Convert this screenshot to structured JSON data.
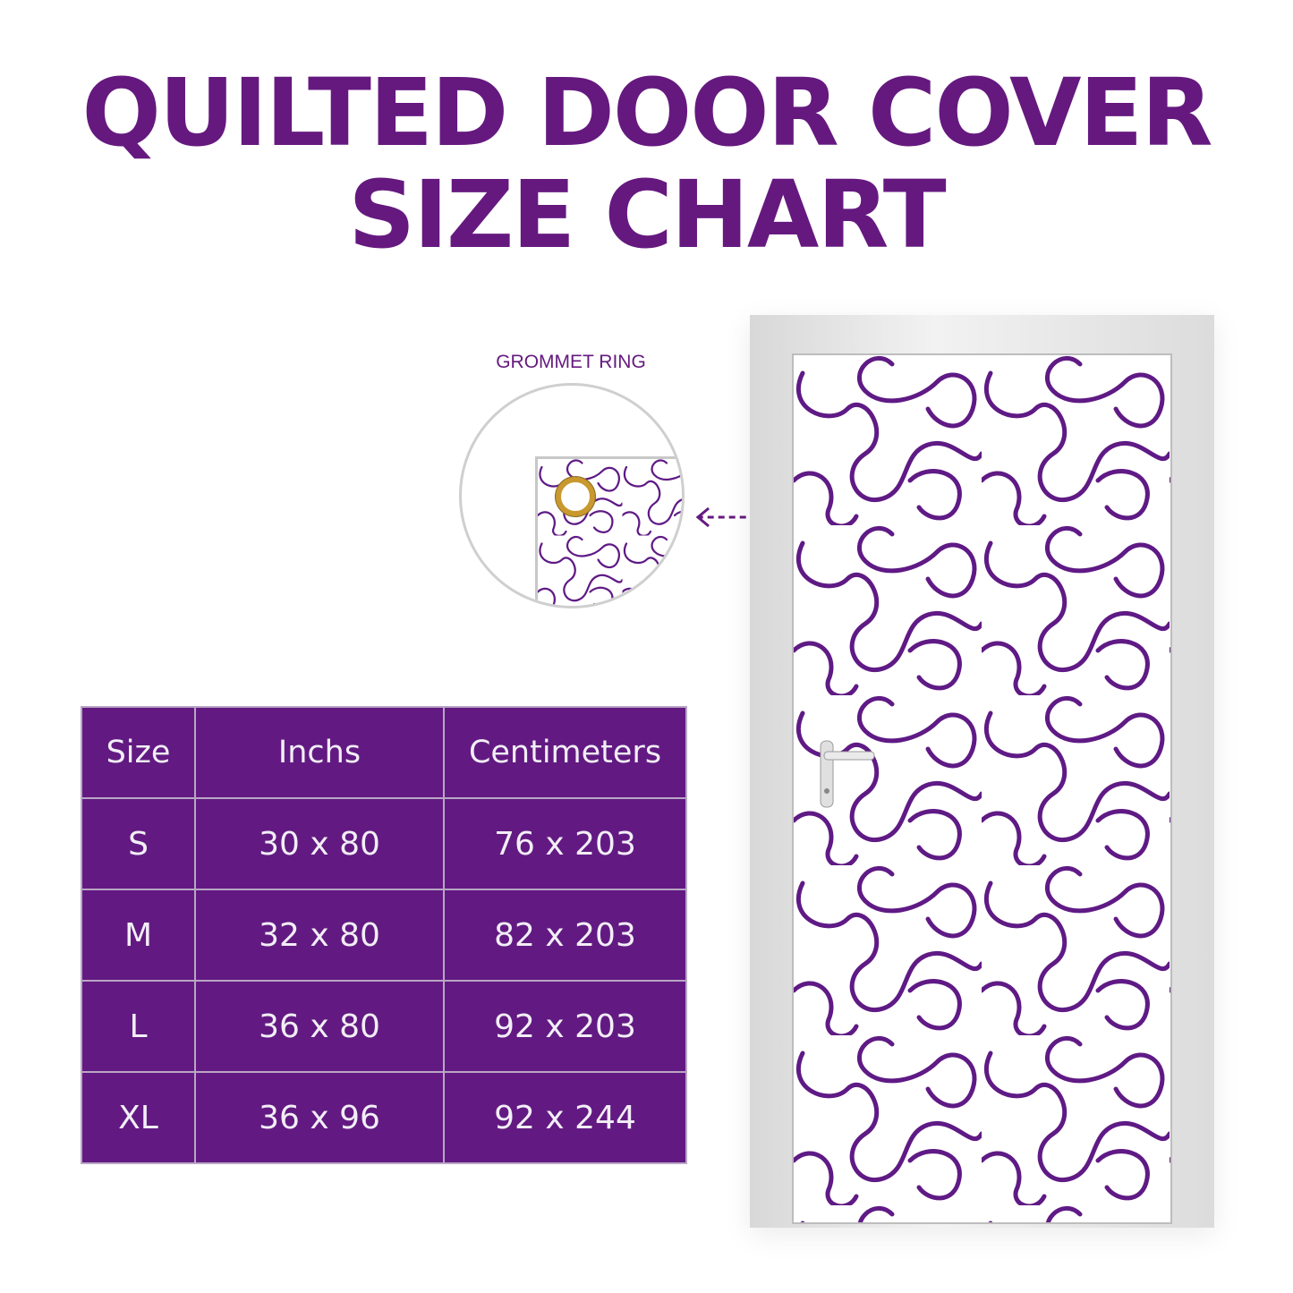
{
  "title": {
    "line1": "QUILTED DOOR COVER",
    "line2": "SIZE CHART"
  },
  "callout": {
    "label": "GROMMET RING"
  },
  "colors": {
    "brand": "#65197f",
    "table_bg": "#621a82",
    "text_light": "#f2eef6"
  },
  "table": {
    "headers": [
      "Size",
      "Inchs",
      "Centimeters"
    ],
    "rows": [
      [
        "S",
        "30 x 80",
        "76 x 203"
      ],
      [
        "M",
        "32 x 80",
        "82 x 203"
      ],
      [
        "L",
        "36 x 80",
        "92 x 203"
      ],
      [
        "XL",
        "36 x 96",
        "92 x 244"
      ]
    ]
  }
}
